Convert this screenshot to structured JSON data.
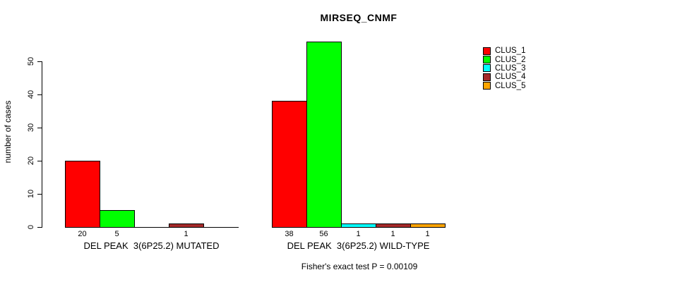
{
  "chart_data": {
    "type": "bar",
    "title": "MIRSEQ_CNMF",
    "ylabel": "number of cases",
    "footer": "Fisher's exact test P = 0.00109",
    "ylim": [
      0,
      56
    ],
    "yticks": [
      0,
      10,
      20,
      30,
      40,
      50
    ],
    "grid": false,
    "legend_position": "right",
    "background": "#FFFFFF",
    "axis_color": "#000000",
    "text_color": "#000000",
    "categories": [
      "DEL PEAK  3(6P25.2) MUTATED",
      "DEL PEAK  3(6P25.2) WILD-TYPE"
    ],
    "series": [
      {
        "name": "CLUS_1",
        "color": "#FF0000",
        "values": [
          20,
          38
        ]
      },
      {
        "name": "CLUS_2",
        "color": "#00FF00",
        "values": [
          5,
          56
        ]
      },
      {
        "name": "CLUS_3",
        "color": "#00FFFF",
        "values": [
          0,
          1
        ]
      },
      {
        "name": "CLUS_4",
        "color": "#A52A2A",
        "values": [
          1,
          1
        ]
      },
      {
        "name": "CLUS_5",
        "color": "#FFA500",
        "values": [
          0,
          1
        ]
      }
    ],
    "legend_entries": [
      "CLUS_1",
      "CLUS_2",
      "CLUS_3",
      "CLUS_4",
      "CLUS_5"
    ],
    "bar_value_labels": {
      "shown": true,
      "hide_zero": true
    }
  }
}
